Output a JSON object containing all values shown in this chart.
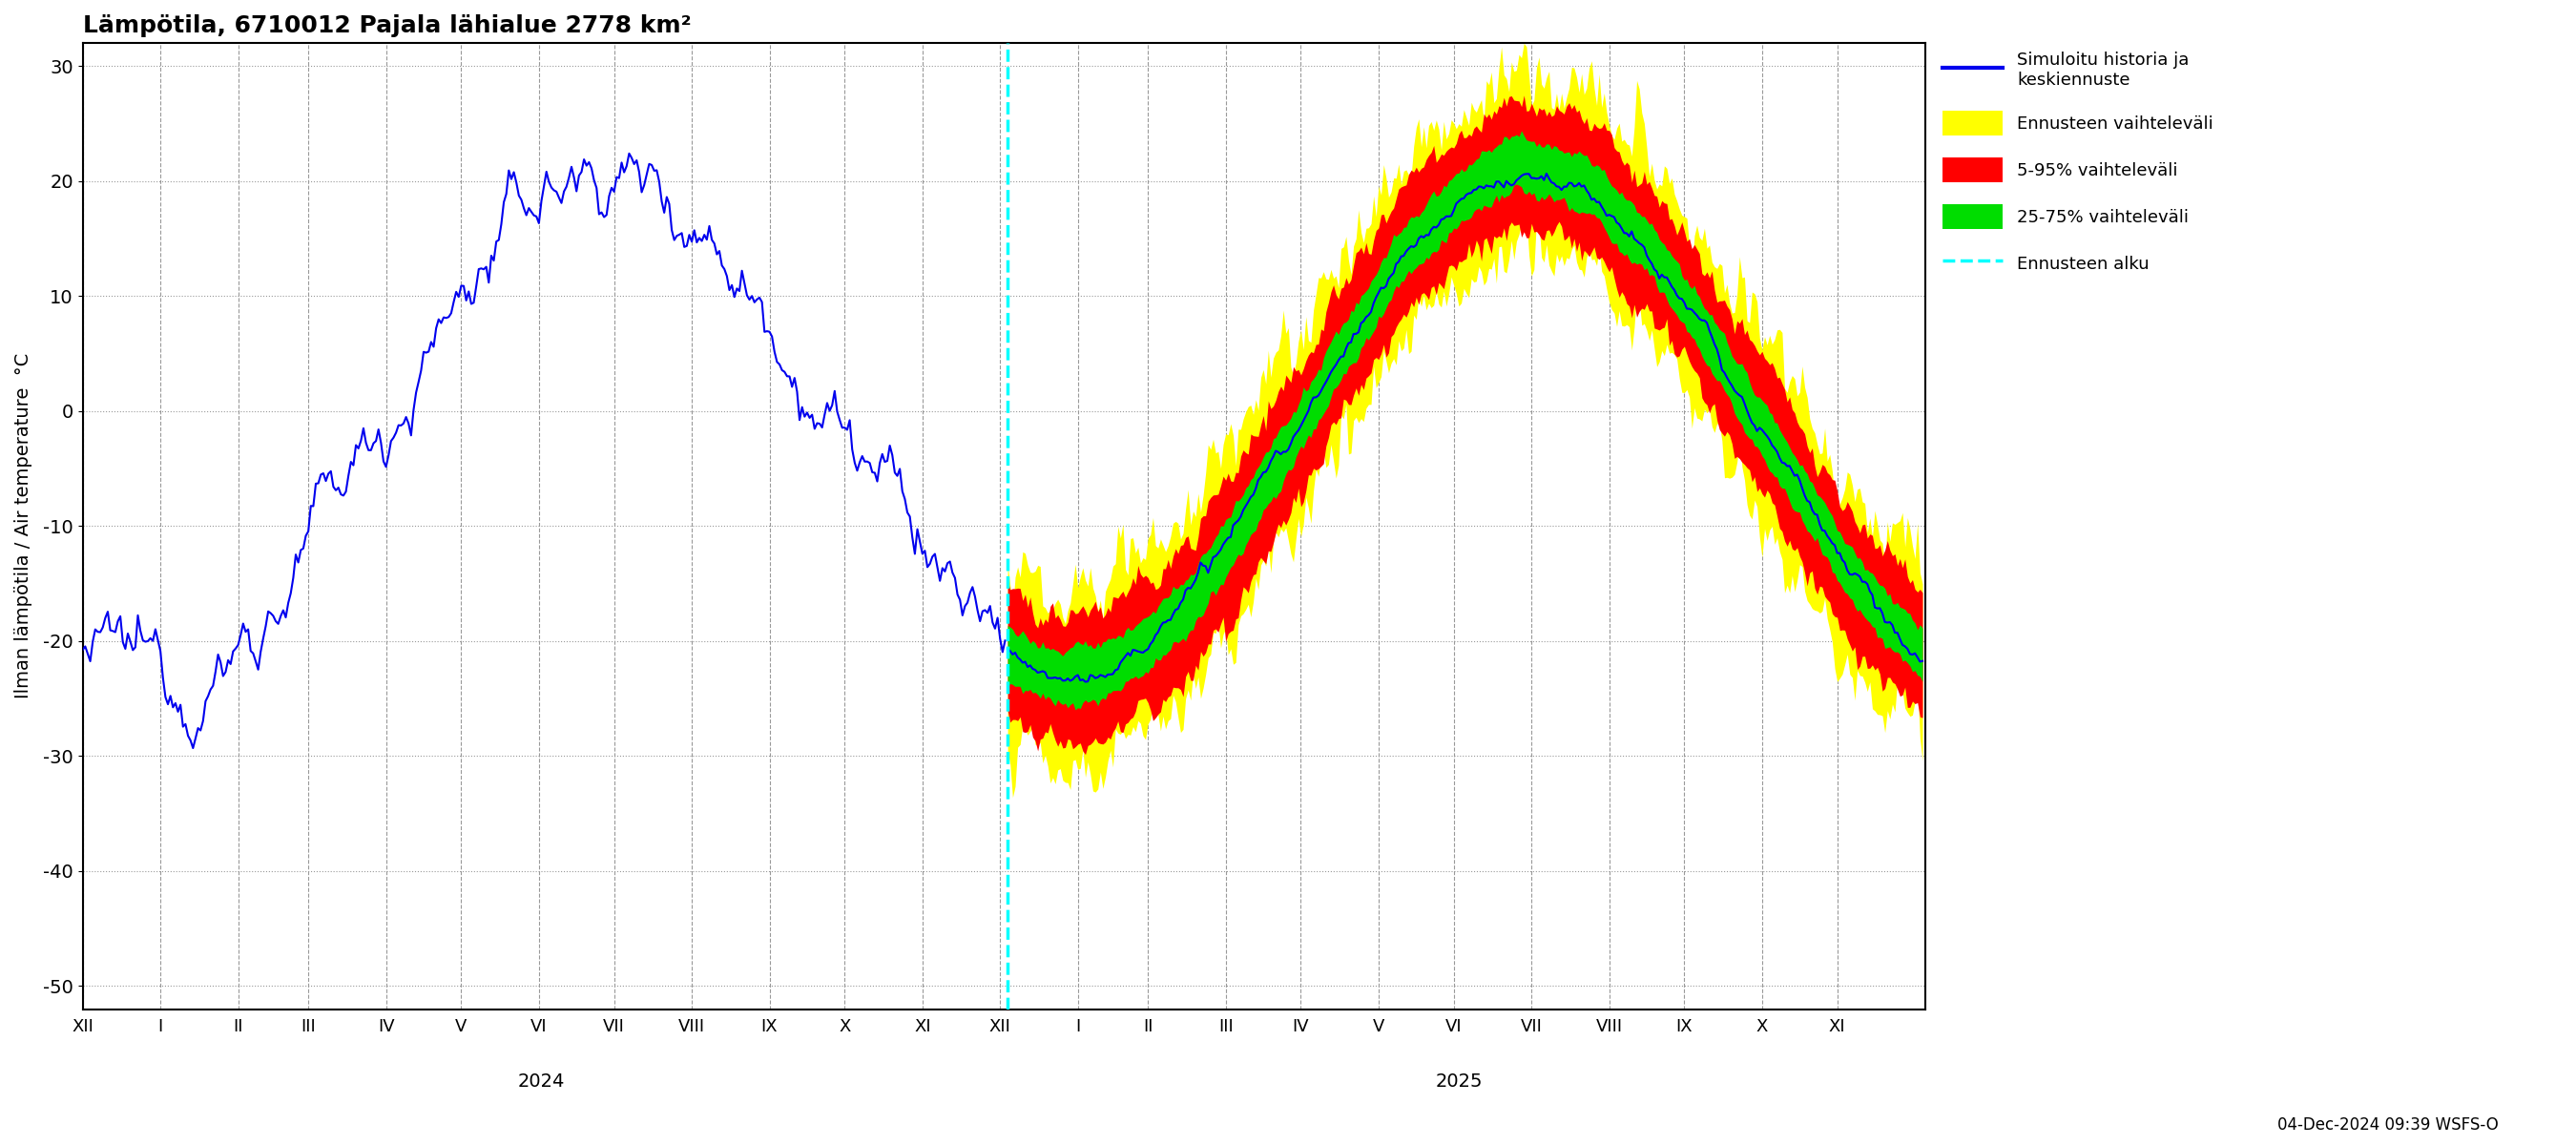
{
  "title": "Lämpötila, 6710012 Pajala lähialue 2778 km²",
  "ylabel_left": "Ilman lämpötila / Air temperature  °C",
  "ylim": [
    -52,
    32
  ],
  "yticks": [
    -50,
    -40,
    -30,
    -20,
    -10,
    0,
    10,
    20,
    30
  ],
  "forecast_start_day": 369,
  "total_days": 735,
  "background_color": "#ffffff",
  "grid_color": "#999999",
  "blue_color": "#0000ee",
  "yellow_color": "#ffff00",
  "red_color": "#ff0000",
  "green_color": "#00dd00",
  "cyan_color": "#00ffff",
  "legend_labels": [
    "Simuloitu historia ja\nkeskiennuste",
    "Ennusteen vaihteleväli",
    "5-95% vaihteleväli",
    "25-75% vaihteleväli",
    "Ennusteen alku"
  ],
  "footer_text": "04-Dec-2024 09:39 WSFS-O",
  "x_tick_labels": [
    "XII",
    "I",
    "II",
    "III",
    "IV",
    "V",
    "VI",
    "VII",
    "VIII",
    "IX",
    "X",
    "XI",
    "XII",
    "I",
    "II",
    "III",
    "IV",
    "V",
    "VI",
    "VII",
    "VIII",
    "IX",
    "X",
    "XI"
  ],
  "x_tick_positions": [
    0,
    31,
    62,
    90,
    121,
    151,
    182,
    212,
    243,
    274,
    304,
    335,
    366,
    397,
    425,
    456,
    486,
    517,
    547,
    578,
    609,
    639,
    670,
    700
  ],
  "year_labels": [
    "2024",
    "2025"
  ],
  "year_label_days": [
    183,
    549
  ],
  "dashed_vline_day": 369
}
